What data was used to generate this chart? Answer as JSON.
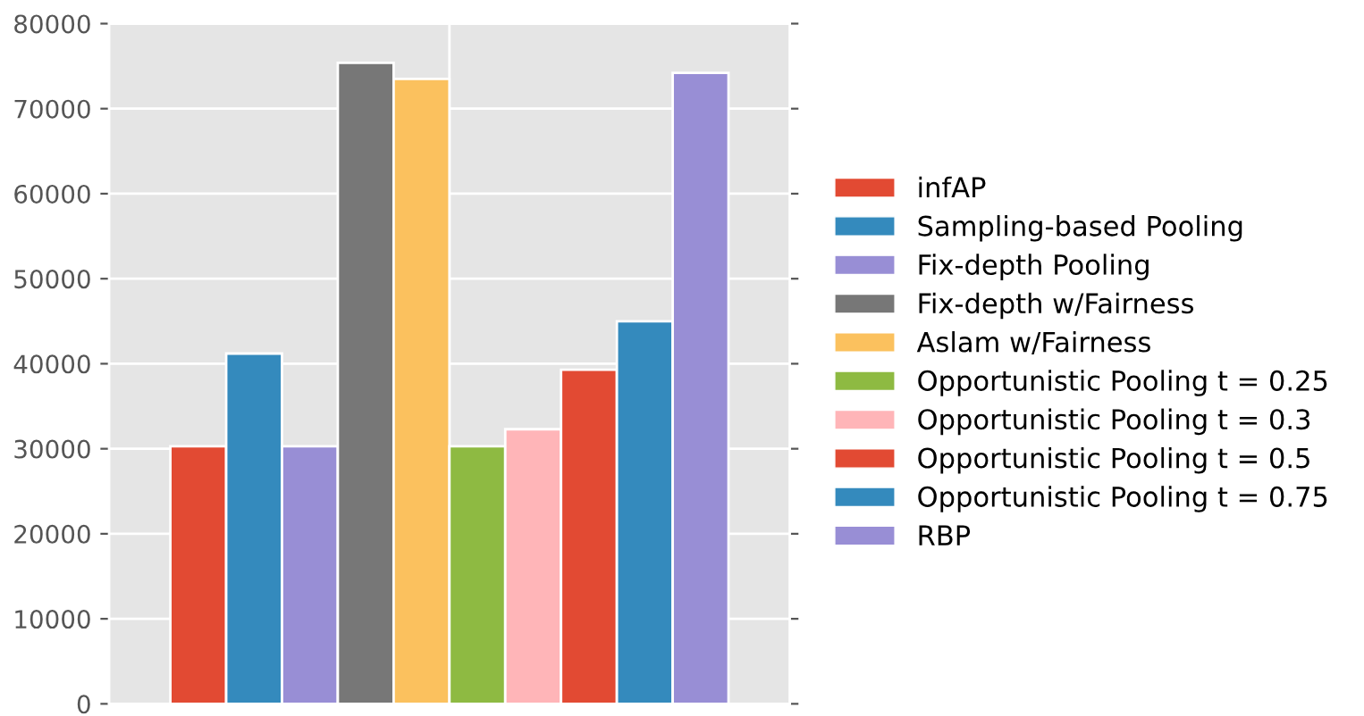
{
  "chart_data": {
    "type": "bar",
    "categories": [
      null
    ],
    "series": [
      {
        "name": "infAP",
        "color": "#e24a33",
        "values": [
          30300
        ]
      },
      {
        "name": "Sampling-based Pooling",
        "color": "#348abd",
        "values": [
          41200
        ]
      },
      {
        "name": "Fix-depth Pooling",
        "color": "#988ed5",
        "values": [
          30300
        ]
      },
      {
        "name": "Fix-depth w/Fairness",
        "color": "#777777",
        "values": [
          75400
        ]
      },
      {
        "name": "Aslam w/Fairness",
        "color": "#fbc15e",
        "values": [
          73500
        ]
      },
      {
        "name": "Opportunistic Pooling t = 0.25",
        "color": "#8eba42",
        "values": [
          30300
        ]
      },
      {
        "name": "Opportunistic Pooling t = 0.3",
        "color": "#ffb5b8",
        "values": [
          32300
        ]
      },
      {
        "name": "Opportunistic Pooling t = 0.5",
        "color": "#e24a33",
        "values": [
          39300
        ]
      },
      {
        "name": "Opportunistic Pooling t = 0.75",
        "color": "#348abd",
        "values": [
          45000
        ]
      },
      {
        "name": "RBP",
        "color": "#988ed5",
        "values": [
          74200
        ]
      }
    ],
    "ylim": [
      0,
      80000
    ],
    "yticks": [
      0,
      10000,
      20000,
      30000,
      40000,
      50000,
      60000,
      70000,
      80000
    ],
    "grid": true,
    "legend": "right",
    "tick_labels": "y"
  }
}
